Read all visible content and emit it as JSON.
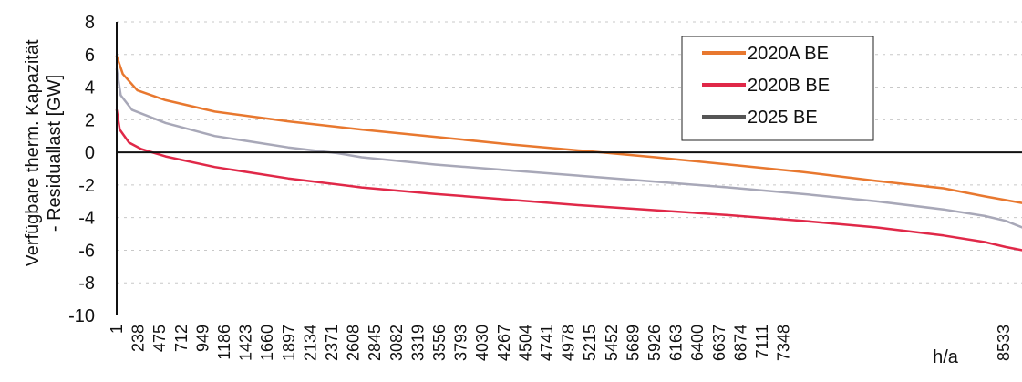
{
  "chart_data": {
    "type": "line",
    "ylabel_line1": "Verfügbare therm. Kapazität",
    "ylabel_line2": "- Residuallast [GW]",
    "xlabel": "h/a",
    "ylim": [
      -10,
      8
    ],
    "yticks": [
      8,
      6,
      4,
      2,
      0,
      -2,
      -4,
      -6,
      -8,
      -10
    ],
    "xlim": [
      1,
      8760
    ],
    "xticks": [
      1,
      238,
      475,
      712,
      949,
      1186,
      1423,
      1660,
      1897,
      2134,
      2371,
      2608,
      2845,
      3082,
      3319,
      3556,
      3793,
      4030,
      4267,
      4504,
      4741,
      4978,
      5215,
      5452,
      5689,
      5926,
      6163,
      6400,
      6637,
      6874,
      7111,
      7348,
      8533
    ],
    "grid": true,
    "legend_position": "top-right",
    "series": [
      {
        "name": "2020A BE",
        "color": "#e8782f",
        "x": [
          1,
          60,
          200,
          475,
          949,
          1660,
          2371,
          3082,
          3793,
          4504,
          5215,
          5452,
          5926,
          6637,
          7348,
          8000,
          8400,
          8760
        ],
        "y": [
          5.9,
          4.8,
          3.8,
          3.2,
          2.5,
          1.9,
          1.4,
          0.95,
          0.5,
          0.1,
          -0.3,
          -0.45,
          -0.75,
          -1.2,
          -1.75,
          -2.2,
          -2.7,
          -3.1
        ]
      },
      {
        "name": "2020B BE",
        "color": "#e02848",
        "x": [
          1,
          30,
          120,
          238,
          475,
          949,
          1660,
          2371,
          3082,
          3793,
          4504,
          5215,
          5926,
          6637,
          7348,
          8000,
          8400,
          8600,
          8760
        ],
        "y": [
          2.6,
          1.4,
          0.6,
          0.2,
          -0.25,
          -0.9,
          -1.6,
          -2.15,
          -2.55,
          -2.9,
          -3.25,
          -3.55,
          -3.85,
          -4.2,
          -4.6,
          -5.1,
          -5.5,
          -5.8,
          -6.0
        ]
      },
      {
        "name": "2025 BE",
        "color": "#a8a8b8",
        "legend_color": "#555555",
        "x": [
          1,
          40,
          150,
          475,
          949,
          1660,
          2134,
          2371,
          3082,
          3793,
          4504,
          5215,
          5926,
          6637,
          7348,
          8000,
          8400,
          8600,
          8760
        ],
        "y": [
          5.1,
          3.5,
          2.6,
          1.8,
          1.0,
          0.3,
          -0.05,
          -0.3,
          -0.75,
          -1.1,
          -1.45,
          -1.8,
          -2.15,
          -2.55,
          -3.0,
          -3.5,
          -3.9,
          -4.2,
          -4.6
        ]
      }
    ]
  }
}
